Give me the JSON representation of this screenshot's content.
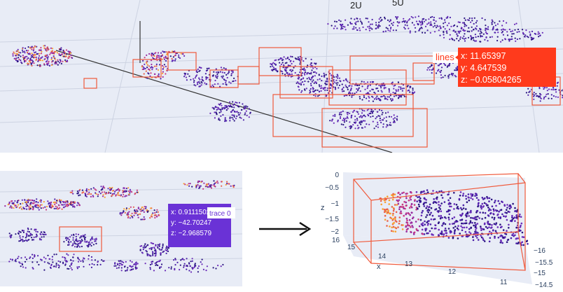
{
  "top_panel": {
    "axis_tick_labels": [
      "2U",
      "5U"
    ],
    "tooltip": {
      "trace_name": "lines",
      "x": "x: 11.65397",
      "y": "y: 4.647539",
      "z": "z: −0.05804265",
      "color": "#ff3a1c"
    }
  },
  "bottom_left_panel": {
    "tooltip": {
      "trace_name": "trace 0",
      "x": "x: 0.9111502",
      "y": "y: −42.70247",
      "z": "z: −2.968579",
      "color": "#6a32d6"
    }
  },
  "arrow": {
    "icon": "right-arrow-icon"
  },
  "bottom_right_panel": {
    "z_axis": {
      "title": "z",
      "ticks": [
        "0",
        "−0.5",
        "−1",
        "−1.5",
        "−2"
      ]
    },
    "x_axis": {
      "title": "x",
      "ticks": [
        "16",
        "15",
        "14",
        "13",
        "12",
        "11"
      ]
    },
    "y_axis": {
      "ticks": [
        "−16",
        "−15.5",
        "−15",
        "−14.5"
      ]
    }
  },
  "colors": {
    "background": "#e8ecf6",
    "box_outline": "#f05a3c",
    "point_low": "#3a1a9a",
    "point_mid": "#c0308a",
    "point_high": "#ffb020"
  }
}
